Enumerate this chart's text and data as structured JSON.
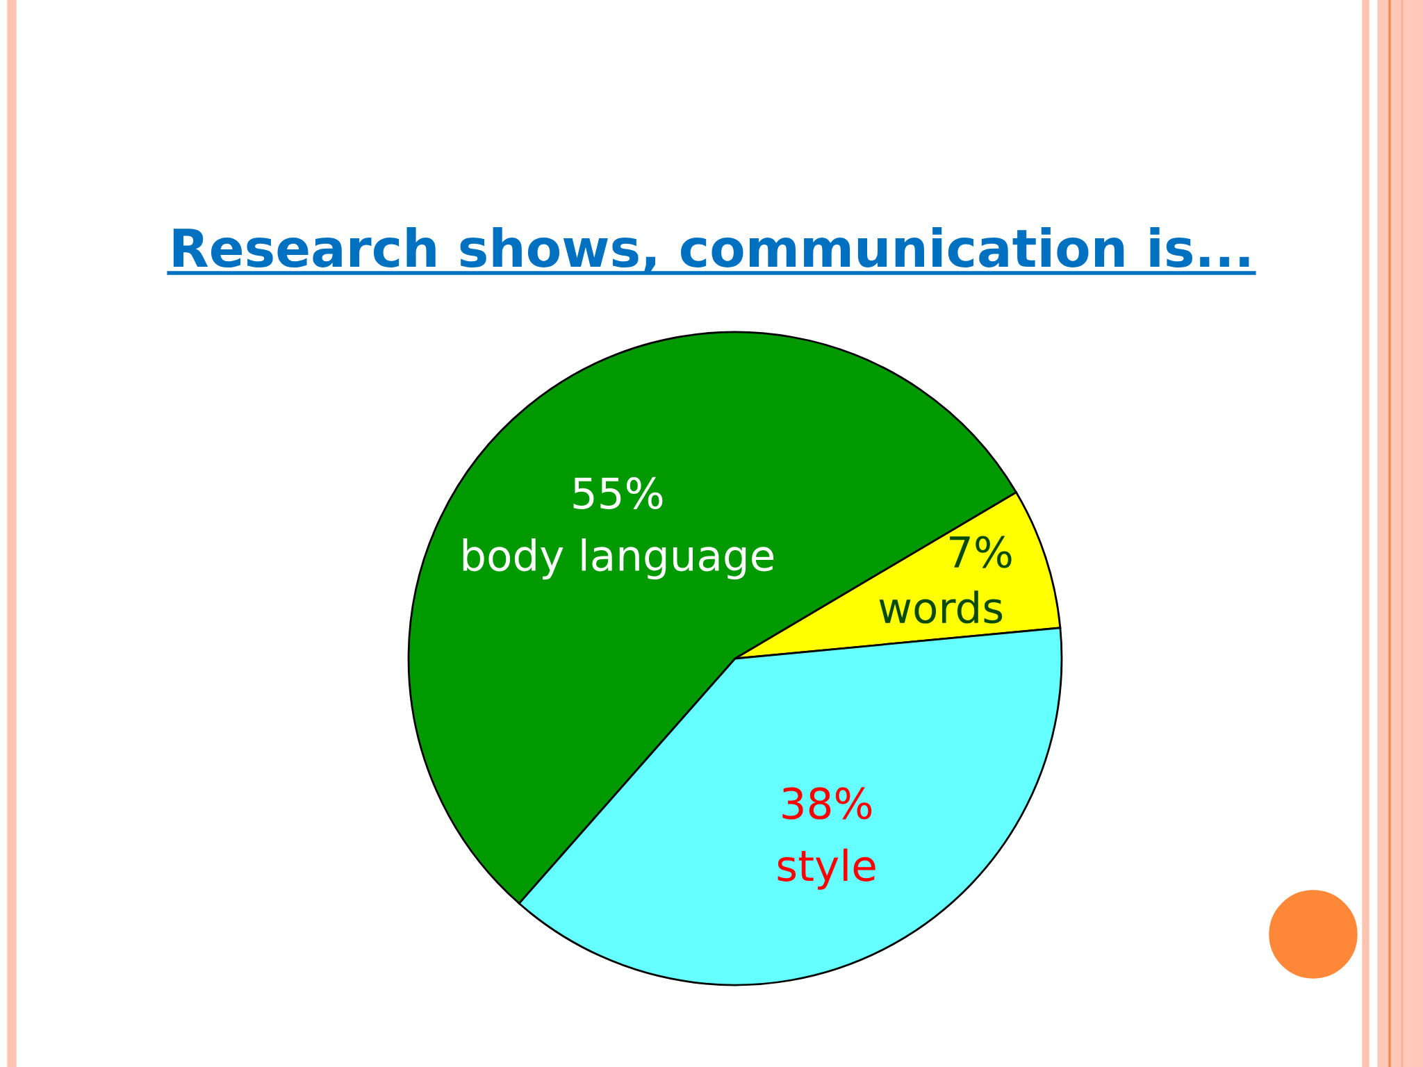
{
  "chart_data": {
    "type": "pie",
    "title": "Research shows, communication is...",
    "categories": [
      "body language",
      "words",
      "style"
    ],
    "values": [
      55,
      7,
      38
    ],
    "colors": [
      "#009900",
      "#ffff00",
      "#66ffff"
    ],
    "value_labels": [
      "55%",
      "7%",
      "38%"
    ]
  }
}
